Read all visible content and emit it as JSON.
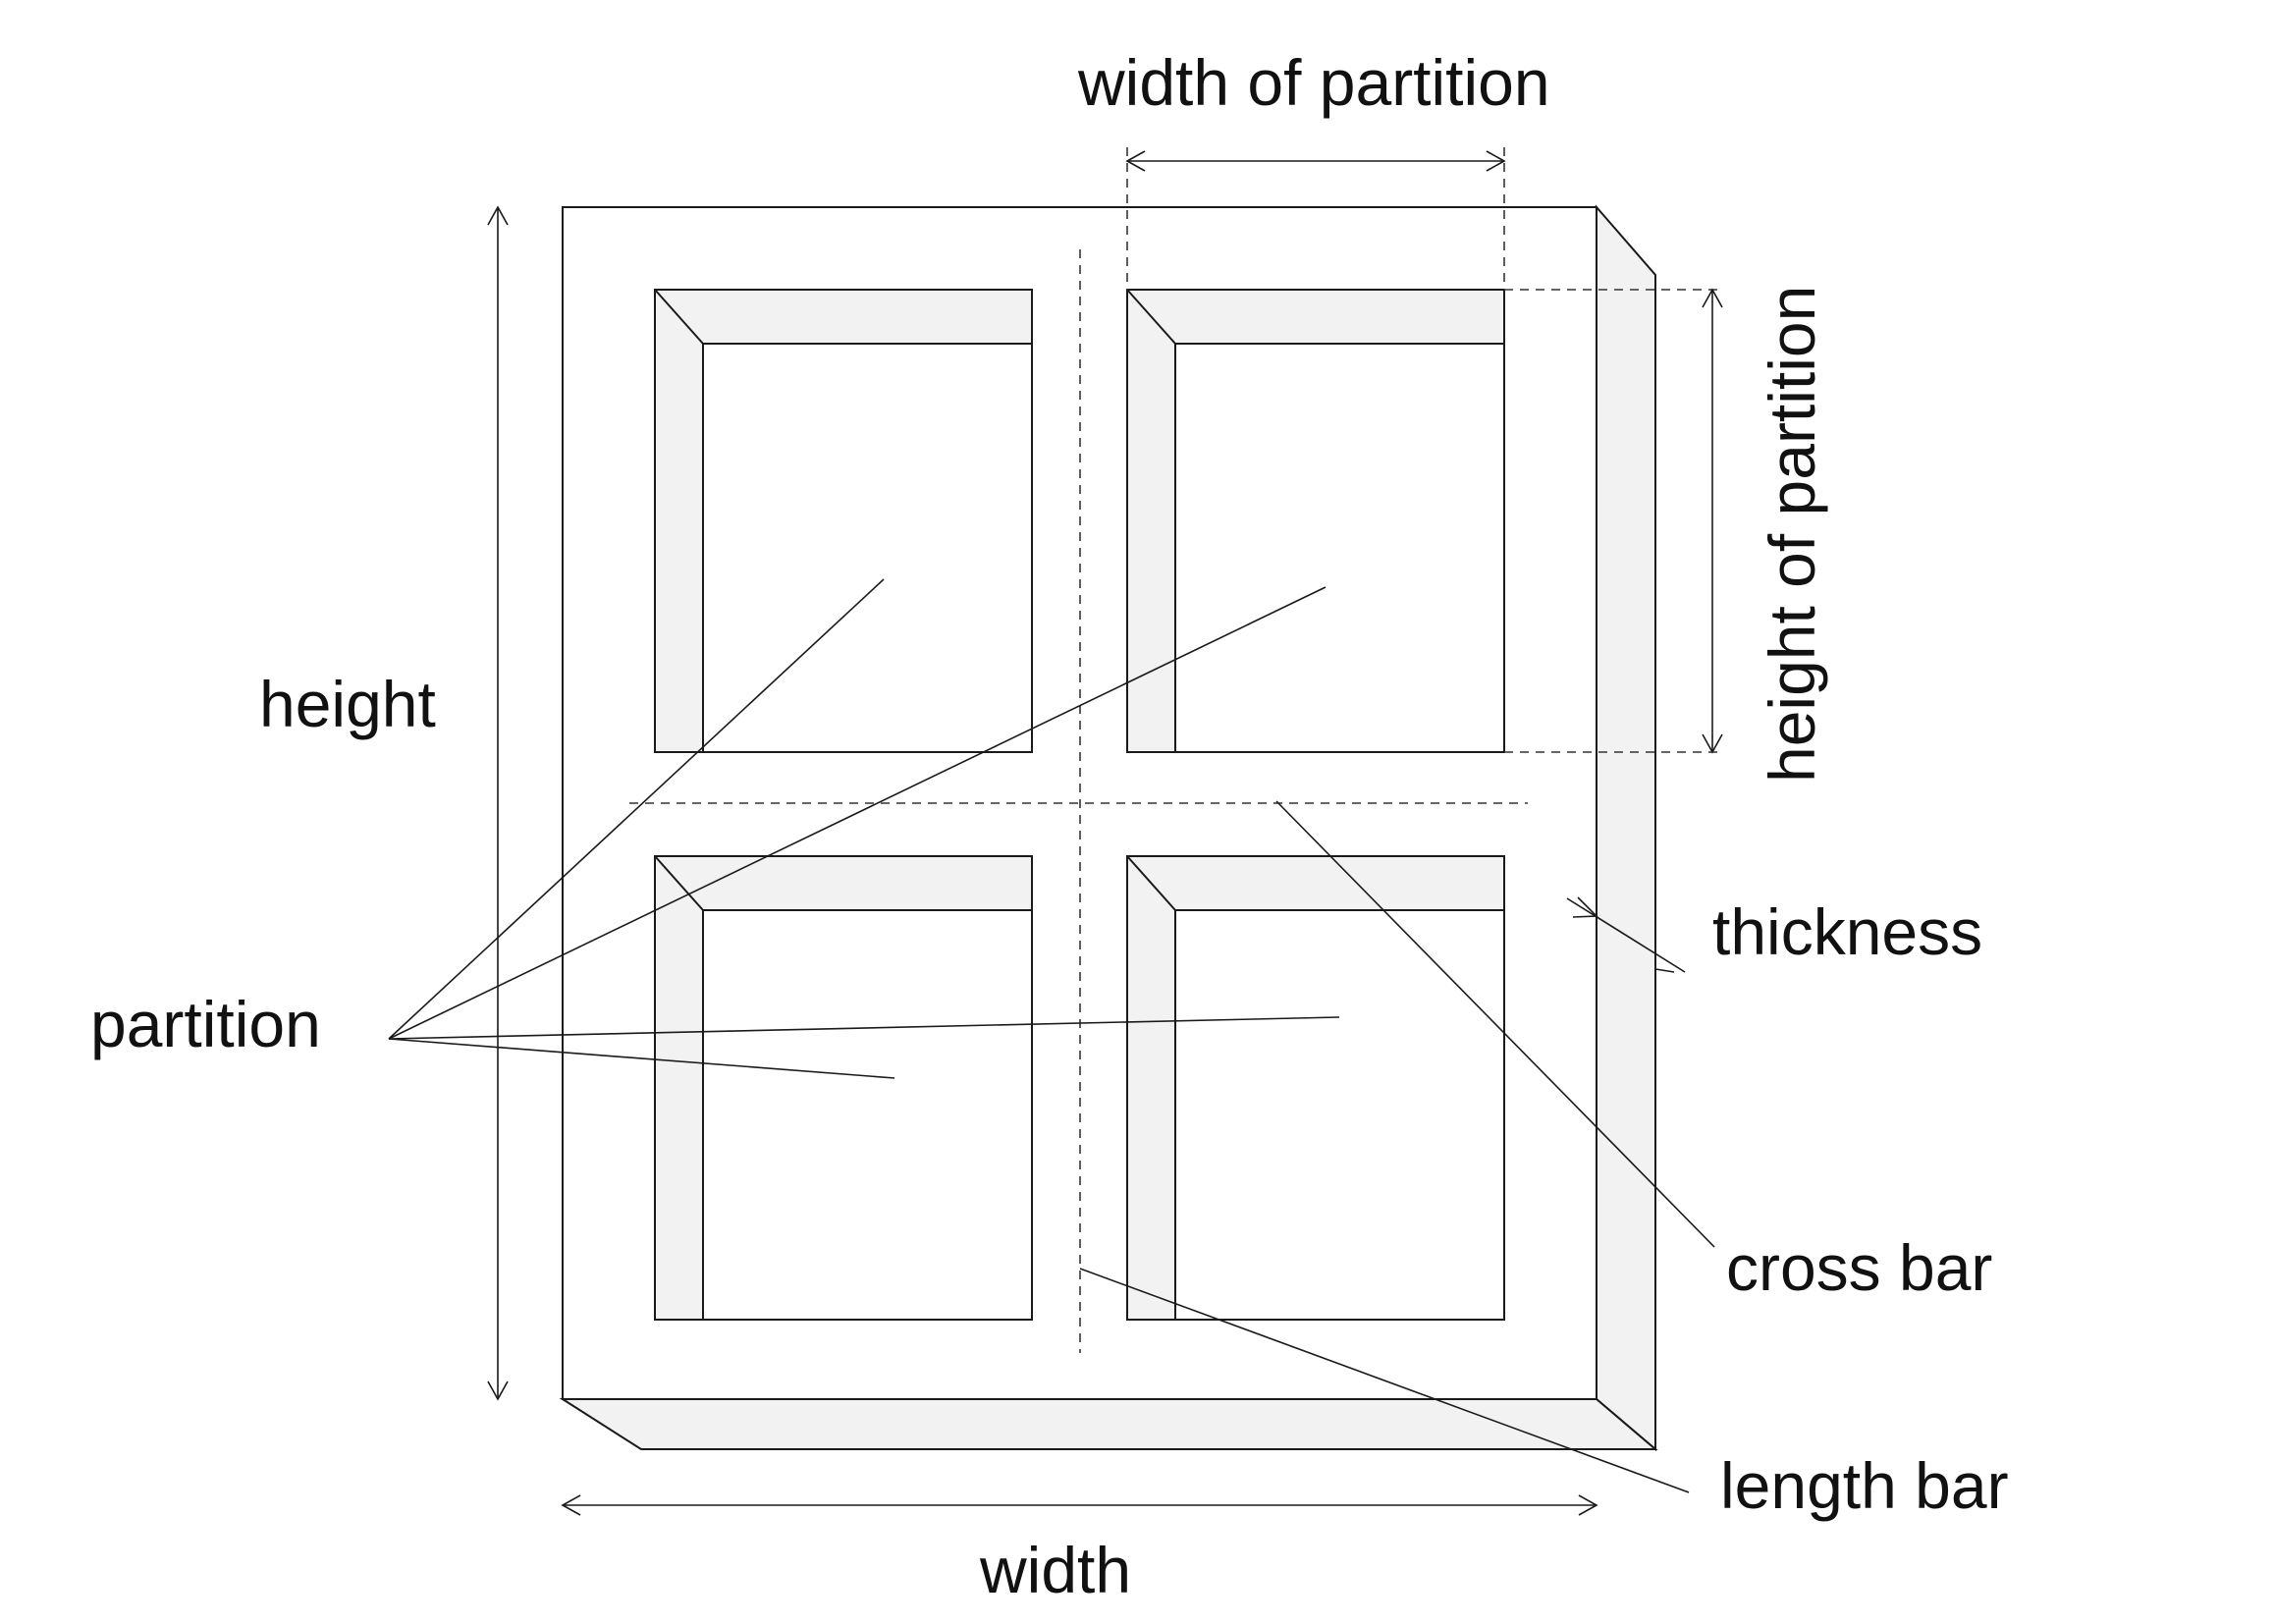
{
  "diagram": {
    "labels": {
      "width_of_partition": "width of partition",
      "height_of_partition": "height of partition",
      "height": "height",
      "thickness": "thickness",
      "partition": "partition",
      "cross_bar": "cross bar",
      "length_bar": "length bar",
      "width": "width"
    },
    "colors": {
      "line": "#1a1a1a",
      "bevel_fill": "#f2f2f2",
      "background": "#ffffff"
    }
  }
}
